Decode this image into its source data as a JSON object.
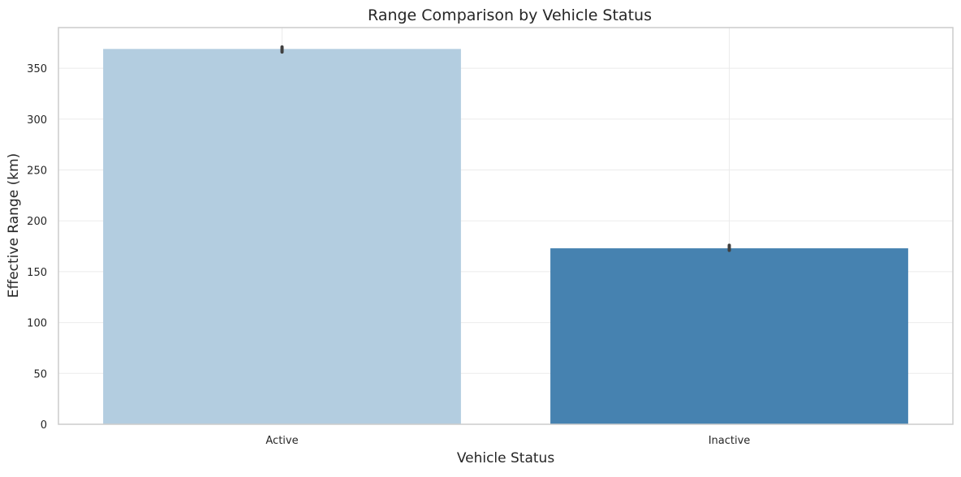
{
  "chart_data": {
    "type": "bar",
    "title": "Range Comparison by Vehicle Status",
    "xlabel": "Vehicle Status",
    "ylabel": "Effective Range (km)",
    "categories": [
      "Active",
      "Inactive"
    ],
    "values": [
      369,
      173
    ],
    "error_bars": [
      [
        366,
        371
      ],
      [
        171,
        176
      ]
    ],
    "ylim": [
      0,
      390
    ],
    "yticks": [
      0,
      50,
      100,
      150,
      200,
      250,
      300,
      350
    ],
    "grid": true,
    "legend": "none",
    "colors": {
      "bars": [
        "#b3cde0",
        "#4682b0"
      ],
      "error_bar": "#404040",
      "grid": "#ebebeb",
      "frame": "#cccccc",
      "background": "#ffffff"
    }
  }
}
